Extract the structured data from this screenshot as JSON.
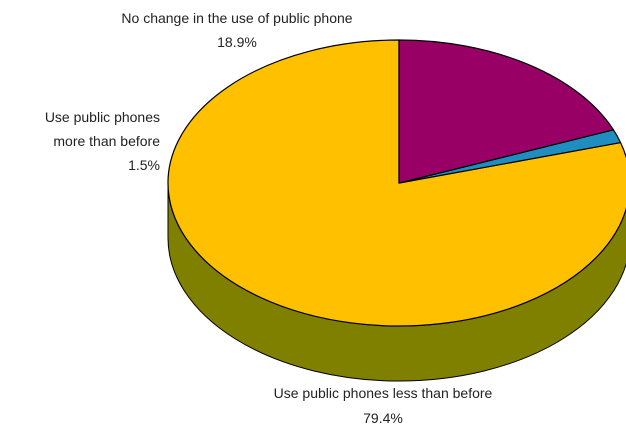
{
  "chart_data": {
    "type": "pie",
    "style": "3d",
    "slices": [
      {
        "label_lines": [
          "Use public phones less than before"
        ],
        "value": 79.4,
        "value_label": "79.4%",
        "color": "#FFC000",
        "side_color": "#808000"
      },
      {
        "label_lines": [
          "Use public phones",
          "more than before"
        ],
        "value": 1.5,
        "value_label": "1.5%",
        "color": "#1F8DBF",
        "side_color": "#0F4A66"
      },
      {
        "label_lines": [
          "No change in the use of public phone"
        ],
        "value": 18.9,
        "value_label": "18.9%",
        "color": "#990066",
        "side_color": "#5C003D"
      }
    ]
  }
}
